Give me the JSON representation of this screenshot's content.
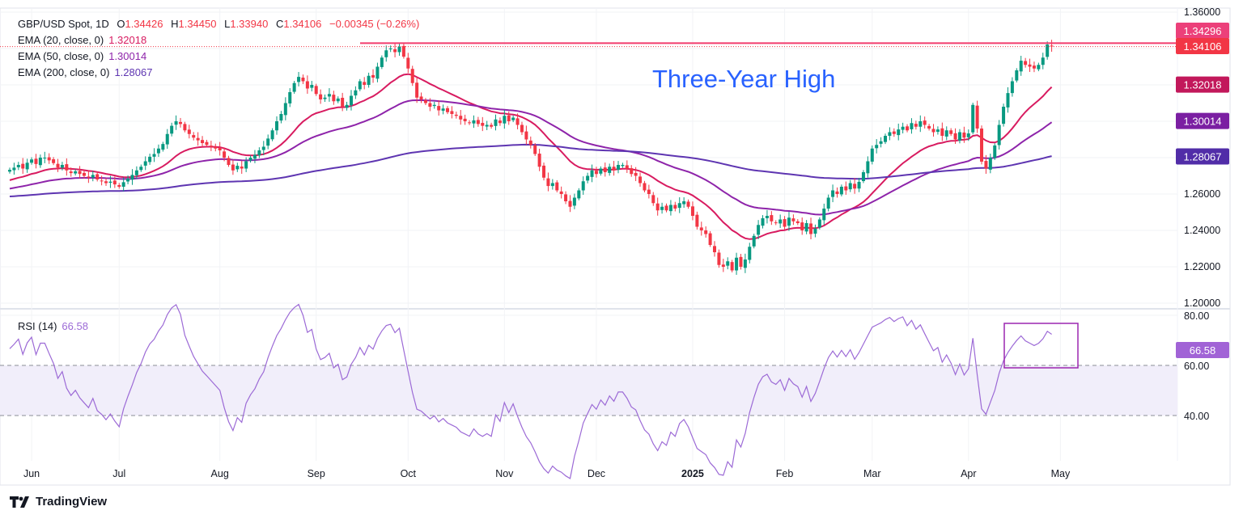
{
  "header": {
    "symbol": "GBP/USD Spot, 1D",
    "o_label": "O",
    "open": "1.34426",
    "h_label": "H",
    "high": "1.34450",
    "l_label": "L",
    "low": "1.33940",
    "c_label": "C",
    "close": "1.34106",
    "change": "−0.00345 (−0.26%)"
  },
  "indicators": [
    {
      "label": "EMA (20, close, 0)",
      "value": "1.32018",
      "color": "#d81b60"
    },
    {
      "label": "EMA (50, close, 0)",
      "value": "1.30014",
      "color": "#8e24aa"
    },
    {
      "label": "EMA (200, close, 0)",
      "value": "1.28067",
      "color": "#5e35b1"
    }
  ],
  "rsi": {
    "label": "RSI (14)",
    "value": "66.58",
    "color": "#9c6ad6",
    "levels": [
      60,
      40
    ],
    "ticks": [
      "80.00",
      "60.00",
      "40.00"
    ]
  },
  "annotation": {
    "text": "Three-Year High",
    "color": "#2962ff",
    "resistance": 1.34296,
    "resistance_label": "1.34296",
    "resistance_color": "#f23b6c"
  },
  "price_labels": {
    "last": "1.34106",
    "last_color": "#f23645"
  },
  "footer": {
    "brand": "TradingView"
  },
  "colors": {
    "up": "#089981",
    "down": "#f23645"
  },
  "chart_data": {
    "type": "candlestick",
    "title": "GBP/USD Spot, 1D",
    "y_ticks": [
      "1.36000",
      "1.26000",
      "1.24000",
      "1.22000",
      "1.20000"
    ],
    "ylim": [
      1.2,
      1.36
    ],
    "rsi_ylim": [
      20,
      80
    ],
    "x_ticks": [
      "Jun",
      "Jul",
      "Aug",
      "Sep",
      "Oct",
      "Nov",
      "Dec",
      "2025",
      "Feb",
      "Mar",
      "Apr",
      "May"
    ],
    "ema_start": {
      "ema20": 1.267,
      "ema50": 1.2625,
      "ema200": 1.2585
    },
    "closes": [
      1.2733,
      1.2745,
      1.276,
      1.274,
      1.2772,
      1.279,
      1.2765,
      1.28,
      1.28,
      1.2785,
      1.277,
      1.2745,
      1.276,
      1.273,
      1.2715,
      1.2725,
      1.271,
      1.27,
      1.269,
      1.2705,
      1.268,
      1.2672,
      1.266,
      1.2668,
      1.2653,
      1.264,
      1.2665,
      1.2685,
      1.2705,
      1.273,
      1.275,
      1.278,
      1.2805,
      1.282,
      1.285,
      1.2875,
      1.293,
      1.2975,
      1.3,
      1.2985,
      1.295,
      1.293,
      1.291,
      1.2895,
      1.288,
      1.287,
      1.286,
      1.285,
      1.284,
      1.28,
      1.276,
      1.273,
      1.2755,
      1.274,
      1.278,
      1.28,
      1.2815,
      1.284,
      1.286,
      1.2905,
      1.295,
      1.3,
      1.304,
      1.31,
      1.316,
      1.321,
      1.3244,
      1.322,
      1.318,
      1.32,
      1.315,
      1.312,
      1.313,
      1.315,
      1.311,
      1.3125,
      1.308,
      1.309,
      1.314,
      1.317,
      1.322,
      1.32,
      1.325,
      1.324,
      1.33,
      1.335,
      1.339,
      1.34,
      1.338,
      1.341,
      1.3355,
      1.329,
      1.321,
      1.313,
      1.312,
      1.31,
      1.308,
      1.309,
      1.306,
      1.307,
      1.305,
      1.304,
      1.303,
      1.301,
      1.3,
      1.299,
      1.3005,
      1.2985,
      1.2975,
      1.298,
      1.297,
      1.301,
      1.299,
      1.303,
      1.3,
      1.302,
      1.298,
      1.294,
      1.29,
      1.287,
      1.282,
      1.275,
      1.269,
      1.2644,
      1.266,
      1.262,
      1.26,
      1.256,
      1.253,
      1.258,
      1.262,
      1.267,
      1.27,
      1.273,
      1.271,
      1.274,
      1.272,
      1.275,
      1.273,
      1.276,
      1.276,
      1.274,
      1.271,
      1.27,
      1.266,
      1.262,
      1.26,
      1.255,
      1.251,
      1.253,
      1.251,
      1.254,
      1.252,
      1.255,
      1.256,
      1.253,
      1.248,
      1.242,
      1.24,
      1.238,
      1.232,
      1.228,
      1.221,
      1.22,
      1.223,
      1.218,
      1.225,
      1.22,
      1.224,
      1.231,
      1.237,
      1.243,
      1.2467,
      1.248,
      1.245,
      1.244,
      1.246,
      1.242,
      1.247,
      1.245,
      1.244,
      1.24,
      1.244,
      1.238,
      1.241,
      1.246,
      1.252,
      1.258,
      1.262,
      1.26,
      1.264,
      1.262,
      1.266,
      1.263,
      1.2667,
      1.272,
      1.278,
      1.285,
      1.287,
      1.289,
      1.292,
      1.294,
      1.293,
      1.2955,
      1.297,
      1.295,
      1.299,
      1.297,
      1.3,
      1.298,
      1.296,
      1.294,
      1.2955,
      1.292,
      1.295,
      1.293,
      1.29,
      1.294,
      1.291,
      1.2933,
      1.309,
      1.296,
      1.2778,
      1.274,
      1.28,
      1.2867,
      1.298,
      1.308,
      1.3155,
      1.322,
      1.328,
      1.3333,
      1.331,
      1.33,
      1.329,
      1.331,
      1.335,
      1.3422,
      1.3411
    ]
  }
}
